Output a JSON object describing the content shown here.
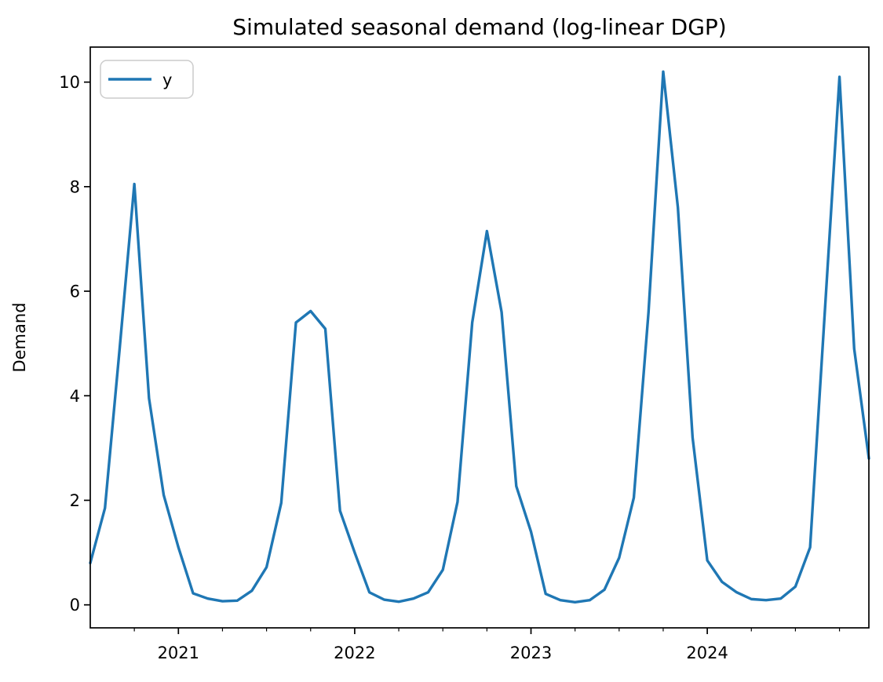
{
  "chart_data": {
    "type": "line",
    "title": "Simulated seasonal demand (log-linear DGP)",
    "xlabel": "",
    "ylabel": "Demand",
    "frequency": "monthly",
    "x_start": "2020-07",
    "x_end": "2024-12",
    "grid": "off",
    "legend": {
      "position": "upper-left",
      "entries": [
        {
          "label": "y",
          "color": "#1f77b4"
        }
      ]
    },
    "series": [
      {
        "name": "y",
        "color": "#1f77b4",
        "x": [
          "2020-07",
          "2020-08",
          "2020-09",
          "2020-10",
          "2020-11",
          "2020-12",
          "2021-01",
          "2021-02",
          "2021-03",
          "2021-04",
          "2021-05",
          "2021-06",
          "2021-07",
          "2021-08",
          "2021-09",
          "2021-10",
          "2021-11",
          "2021-12",
          "2022-01",
          "2022-02",
          "2022-03",
          "2022-04",
          "2022-05",
          "2022-06",
          "2022-07",
          "2022-08",
          "2022-09",
          "2022-10",
          "2022-11",
          "2022-12",
          "2023-01",
          "2023-02",
          "2023-03",
          "2023-04",
          "2023-05",
          "2023-06",
          "2023-07",
          "2023-08",
          "2023-09",
          "2023-10",
          "2023-11",
          "2023-12",
          "2024-01",
          "2024-02",
          "2024-03",
          "2024-04",
          "2024-05",
          "2024-06",
          "2024-07",
          "2024-08",
          "2024-09",
          "2024-10",
          "2024-11",
          "2024-12"
        ],
        "values": [
          0.8,
          1.85,
          4.9,
          8.05,
          3.95,
          2.1,
          1.1,
          0.22,
          0.12,
          0.07,
          0.08,
          0.27,
          0.72,
          1.95,
          5.4,
          5.62,
          5.28,
          1.8,
          1.0,
          0.24,
          0.1,
          0.06,
          0.12,
          0.24,
          0.67,
          1.97,
          5.4,
          7.15,
          5.6,
          2.27,
          1.4,
          0.21,
          0.09,
          0.05,
          0.09,
          0.29,
          0.9,
          2.05,
          5.6,
          10.2,
          7.6,
          3.2,
          0.85,
          0.44,
          0.24,
          0.11,
          0.09,
          0.12,
          0.35,
          1.1,
          5.6,
          10.1,
          4.9,
          2.8
        ]
      }
    ],
    "y_ticks": [
      0,
      2,
      4,
      6,
      8,
      10
    ],
    "x_tick_labels": [
      "2021",
      "2022",
      "2023",
      "2024"
    ],
    "x_major_tick_months": [
      6,
      18,
      30,
      42
    ],
    "x_minor_tick_months": [
      3,
      9,
      12,
      15,
      21,
      24,
      27,
      33,
      36,
      39,
      45,
      48,
      51
    ],
    "xlim_months": [
      0,
      53
    ],
    "ylim": [
      -0.44,
      10.67
    ]
  },
  "colors": {
    "line": "#1f77b4",
    "axis": "#000000",
    "background": "#ffffff",
    "legend_border": "#cccccc"
  }
}
